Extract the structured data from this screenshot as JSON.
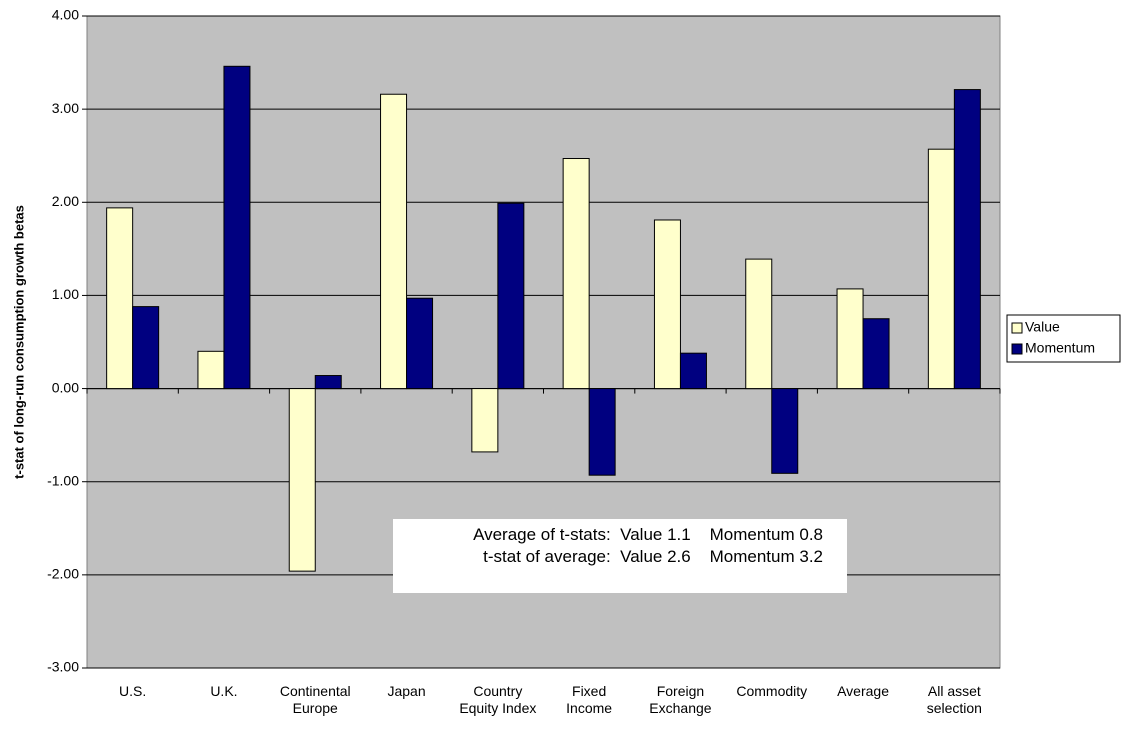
{
  "chart_data": {
    "type": "bar",
    "y_label": "t-stat of long-run consumption growth betas",
    "categories": [
      "U.S.",
      "U.K.",
      "Continental Europe",
      "Japan",
      "Country Equity Index",
      "Fixed Income",
      "Foreign Exchange",
      "Commodity",
      "Average",
      "All asset selection"
    ],
    "series": [
      {
        "name": "Value",
        "color": "#ffffcc",
        "values": [
          1.94,
          0.4,
          -1.96,
          3.16,
          -0.68,
          2.47,
          1.81,
          1.39,
          1.07,
          2.57
        ]
      },
      {
        "name": "Momentum",
        "color": "#000080",
        "values": [
          0.88,
          3.46,
          0.14,
          0.97,
          1.99,
          -0.93,
          0.38,
          -0.91,
          0.75,
          3.21
        ]
      }
    ],
    "ylim": [
      -3,
      4
    ],
    "yticks": [
      {
        "value": -3,
        "label": "-3.00"
      },
      {
        "value": -2,
        "label": "-2.00"
      },
      {
        "value": -1,
        "label": "-1.00"
      },
      {
        "value": 0,
        "label": "0.00"
      },
      {
        "value": 1,
        "label": "1.00"
      },
      {
        "value": 2,
        "label": "2.00"
      },
      {
        "value": 3,
        "label": "3.00"
      },
      {
        "value": 4,
        "label": "4.00"
      }
    ],
    "grid": true,
    "legend": "right",
    "annotations": [
      "Average of t-stats:  Value 1.1    Momentum 0.8",
      "t-stat of average:  Value 2.6    Momentum 3.2"
    ]
  }
}
